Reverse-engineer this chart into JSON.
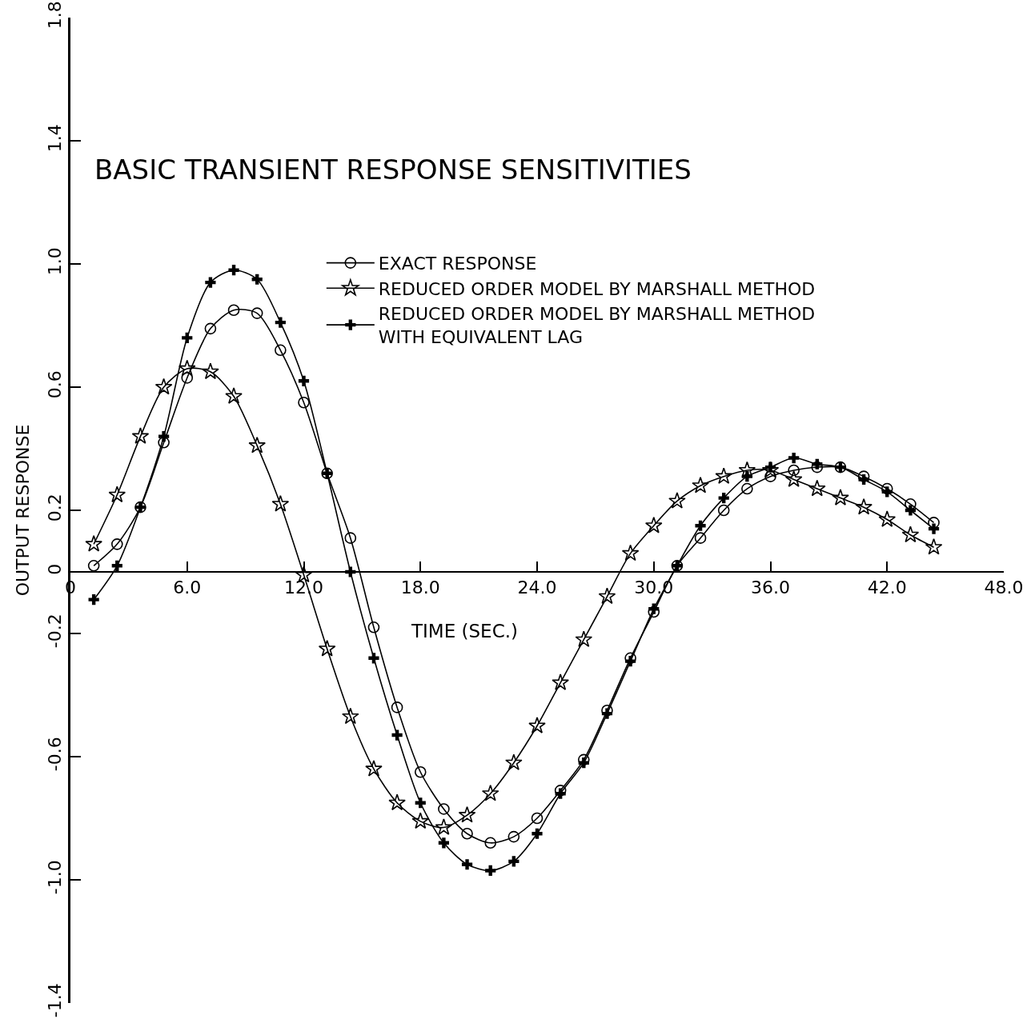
{
  "chart_data": {
    "type": "line",
    "title": "BASIC TRANSIENT RESPONSE SENSITIVITIES",
    "xlabel": "TIME (SEC.)",
    "ylabel": "OUTPUT RESPONSE",
    "xlim": [
      0,
      48
    ],
    "ylim": [
      -1.4,
      1.8
    ],
    "xticks": [
      0,
      {
        "value": 6,
        "label": "6.0"
      },
      {
        "value": 12,
        "label": "12.0"
      },
      {
        "value": 18,
        "label": "18.0"
      },
      {
        "value": 24,
        "label": "24.0"
      },
      {
        "value": 30,
        "label": "30.0"
      },
      {
        "value": 36,
        "label": "36.0"
      },
      {
        "value": 42,
        "label": "42.0"
      },
      {
        "value": 48,
        "label": "48.0"
      }
    ],
    "yticks": [
      1.8,
      1.4,
      {
        "value": 1,
        "label": "1.0"
      },
      0.6,
      0.2,
      0,
      -0.2,
      -0.6,
      {
        "value": -1,
        "label": "-1.0"
      },
      -1.4
    ],
    "grid": false,
    "legend": "top right",
    "line_style": "solid",
    "x": [
      1.2,
      2.4,
      3.6,
      4.8,
      6.0,
      7.2,
      8.4,
      9.6,
      10.8,
      12.0,
      13.2,
      14.4,
      15.6,
      16.8,
      18.0,
      19.2,
      20.4,
      21.6,
      22.8,
      24.0,
      25.2,
      26.4,
      27.6,
      28.8,
      30.0,
      31.2,
      32.4,
      33.6,
      34.8,
      36.0,
      37.2,
      38.4,
      39.6,
      40.8,
      42.0,
      43.2,
      44.4
    ],
    "series": [
      {
        "name": "EXACT RESPONSE",
        "color": "#000000",
        "marker": "circle",
        "values": [
          0.02,
          0.09,
          0.21,
          0.42,
          0.63,
          0.79,
          0.85,
          0.84,
          0.72,
          0.55,
          0.32,
          0.11,
          -0.18,
          -0.44,
          -0.65,
          -0.77,
          -0.85,
          -0.88,
          -0.86,
          -0.8,
          -0.71,
          -0.61,
          -0.45,
          -0.28,
          -0.13,
          0.02,
          0.11,
          0.2,
          0.27,
          0.31,
          0.33,
          0.34,
          0.34,
          0.31,
          0.27,
          0.22,
          0.16
        ]
      },
      {
        "name": "REDUCED ORDER MODEL BY MARSHALL METHOD",
        "color": "#000000",
        "marker": "star",
        "values": [
          0.09,
          0.25,
          0.44,
          0.6,
          0.66,
          0.65,
          0.57,
          0.41,
          0.22,
          -0.01,
          -0.25,
          -0.47,
          -0.64,
          -0.75,
          -0.81,
          -0.83,
          -0.79,
          -0.72,
          -0.62,
          -0.5,
          -0.36,
          -0.22,
          -0.08,
          0.06,
          0.15,
          0.23,
          0.28,
          0.31,
          0.33,
          0.33,
          0.3,
          0.27,
          0.24,
          0.21,
          0.17,
          0.12,
          0.08
        ]
      },
      {
        "name": "REDUCED ORDER MODEL BY MARSHALL METHOD WITH EQUIVALENT LAG",
        "color": "#000000",
        "marker": "cross",
        "values": [
          -0.09,
          0.02,
          0.21,
          0.44,
          0.76,
          0.94,
          0.98,
          0.95,
          0.81,
          0.62,
          0.32,
          0.0,
          -0.28,
          -0.53,
          -0.75,
          -0.88,
          -0.95,
          -0.97,
          -0.94,
          -0.85,
          -0.72,
          -0.62,
          -0.46,
          -0.29,
          -0.12,
          0.02,
          0.15,
          0.24,
          0.31,
          0.34,
          0.37,
          0.35,
          0.34,
          0.3,
          0.26,
          0.2,
          0.14
        ]
      }
    ]
  }
}
